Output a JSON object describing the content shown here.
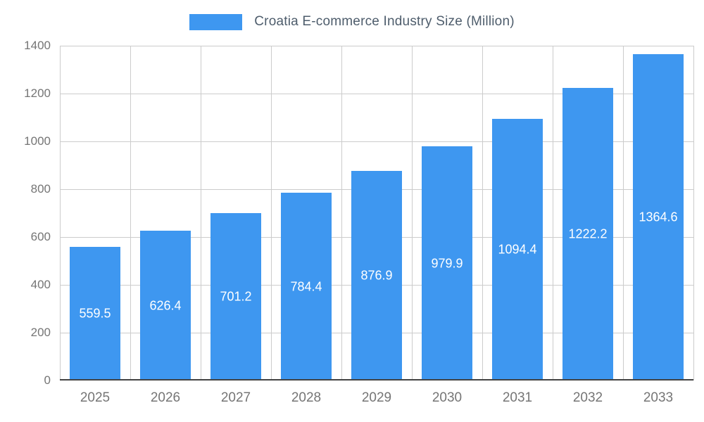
{
  "chart_data": {
    "type": "bar",
    "title": "Croatia E-commerce Industry Size (Million)",
    "categories": [
      "2025",
      "2026",
      "2027",
      "2028",
      "2029",
      "2030",
      "2031",
      "2032",
      "2033"
    ],
    "values": [
      559.5,
      626.4,
      701.2,
      784.4,
      876.9,
      979.9,
      1094.4,
      1222.2,
      1364.6
    ],
    "value_labels": [
      "559.5",
      "626.4",
      "701.2",
      "784.4",
      "876.9",
      "979.9",
      "1094.4",
      "1222.2",
      "1364.6"
    ],
    "xlabel": "",
    "ylabel": "",
    "ylim": [
      0,
      1400
    ],
    "yticks": [
      0,
      200,
      400,
      600,
      800,
      1000,
      1200,
      1400
    ],
    "grid": true,
    "legend_position": "top",
    "colors": {
      "bar": "#3E97F0",
      "bar_value_label": "#FFFFFF",
      "axis_text": "#757575",
      "gridline": "#CCCCCC",
      "baseline": "#424242",
      "legend_text": "#4E5D6C"
    }
  }
}
